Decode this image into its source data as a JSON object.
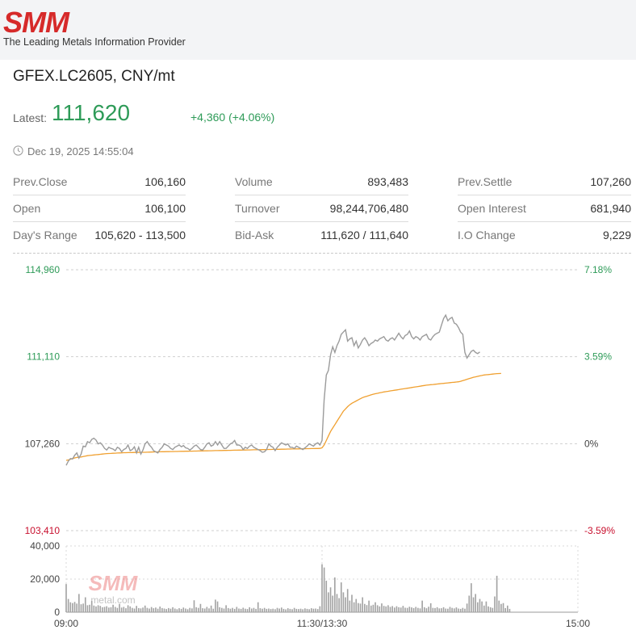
{
  "header": {
    "logo_text": "SMM",
    "tagline": "The Leading Metals Information Provider"
  },
  "instrument": {
    "title": "GFEX.LC2605, CNY/mt",
    "latest_label": "Latest:",
    "latest_value": "111,620",
    "change": "+4,360 (+4.06%)",
    "timestamp": "Dec 19, 2025 14:55:04"
  },
  "stats": [
    [
      {
        "label": "Prev.Close",
        "value": "106,160"
      },
      {
        "label": "Open",
        "value": "106,100"
      },
      {
        "label": "Day's Range",
        "value": "105,620 - 113,500"
      }
    ],
    [
      {
        "label": "Volume",
        "value": "893,483"
      },
      {
        "label": "Turnover",
        "value": "98,244,706,480"
      },
      {
        "label": "Bid-Ask",
        "value": "111,620 / 111,640"
      }
    ],
    [
      {
        "label": "Prev.Settle",
        "value": "107,260"
      },
      {
        "label": "Open Interest",
        "value": "681,940"
      },
      {
        "label": "I.O Change",
        "value": "9,229"
      }
    ]
  ],
  "colors": {
    "up": "#2e9b58",
    "down": "#c8102e",
    "price_line": "#9b9b9b",
    "avg_line": "#f0a030",
    "volume_bar": "#a3a3a3",
    "logo": "#d62a2a"
  },
  "chart_data": {
    "type": "line",
    "price_axis": {
      "min": 103410,
      "max": 114960,
      "ticks": [
        {
          "value": 114960,
          "label": "114,960",
          "pct": "7.18%"
        },
        {
          "value": 111110,
          "label": "111,110",
          "pct": "3.59%"
        },
        {
          "value": 107260,
          "label": "107,260",
          "pct": "0%"
        },
        {
          "value": 103410,
          "label": "103,410",
          "pct": "-3.59%"
        }
      ]
    },
    "time_labels": [
      "09:00",
      "11:30/13:30",
      "15:00"
    ],
    "session_split_index": 120,
    "price_series": [
      106300,
      106480,
      106600,
      106580,
      106750,
      106850,
      106620,
      106800,
      107150,
      107120,
      107350,
      107300,
      107450,
      107500,
      107420,
      107250,
      107300,
      107200,
      107050,
      106980,
      107100,
      107050,
      107020,
      106950,
      107100,
      107050,
      106900,
      107000,
      107050,
      107200,
      106950,
      107000,
      107120,
      106850,
      107100,
      106800,
      106980,
      107250,
      107350,
      107200,
      107100,
      106950,
      106900,
      106850,
      107000,
      107100,
      107250,
      107200,
      107150,
      107050,
      107000,
      107100,
      107150,
      107200,
      107120,
      107180,
      107080,
      107050,
      106980,
      107050,
      107150,
      107200,
      107100,
      107000,
      106980,
      107100,
      107250,
      107300,
      107150,
      107200,
      107350,
      107200,
      107350,
      107200,
      107050,
      107050,
      107150,
      107250,
      107300,
      107400,
      107200,
      107200,
      107150,
      107000,
      107100,
      107050,
      107150,
      107200,
      107100,
      107050,
      107000,
      106950,
      106880,
      106900,
      107000,
      107250,
      107150,
      107100,
      106950,
      107100,
      107200,
      107300,
      107250,
      107200,
      107250,
      107100,
      107100,
      107050,
      107150,
      107100,
      107050,
      107000,
      107080,
      107150,
      107250,
      107200,
      107150,
      107250,
      107300,
      107200,
      107400,
      109200,
      110300,
      110500,
      111200,
      111550,
      111300,
      111600,
      111800,
      112100,
      112200,
      112300,
      111800,
      111900,
      111950,
      111600,
      111800,
      111500,
      111650,
      111850,
      111950,
      111800,
      111600,
      111700,
      111750,
      111850,
      111800,
      111900,
      111950,
      112000,
      111850,
      111800,
      111900,
      111950,
      111850,
      112000,
      112150,
      112000,
      111900,
      112050,
      112100,
      112250,
      112000,
      111900,
      112000,
      111950,
      111850,
      112000,
      112050,
      112100,
      111900,
      111850,
      112000,
      112100,
      112150,
      112200,
      112500,
      112800,
      112950,
      112700,
      112800,
      112850,
      112600,
      112550,
      112400,
      112200,
      112100,
      111300,
      111050,
      111200,
      111350,
      111400,
      111300,
      111250,
      111320
    ],
    "avg_series": [
      106520,
      106540,
      106570,
      106600,
      106630,
      106650,
      106660,
      106670,
      106690,
      106710,
      106730,
      106740,
      106750,
      106760,
      106770,
      106780,
      106790,
      106800,
      106810,
      106820,
      106825,
      106830,
      106835,
      106840,
      106845,
      106850,
      106855,
      106860,
      106862,
      106864,
      106866,
      106868,
      106870,
      106872,
      106874,
      106876,
      106878,
      106880,
      106883,
      106886,
      106889,
      106892,
      106895,
      106898,
      106900,
      106902,
      106904,
      106906,
      106908,
      106910,
      106912,
      106914,
      106916,
      106918,
      106920,
      106922,
      106924,
      106926,
      106928,
      106930,
      106932,
      106934,
      106936,
      106938,
      106940,
      106942,
      106944,
      106946,
      106948,
      106950,
      106952,
      106954,
      106956,
      106958,
      106960,
      106962,
      106964,
      106966,
      106968,
      106970,
      106972,
      106974,
      106976,
      106978,
      106980,
      106982,
      106984,
      106986,
      106988,
      106990,
      106992,
      106994,
      106996,
      106998,
      107000,
      107002,
      107004,
      107006,
      107008,
      107010,
      107012,
      107014,
      107016,
      107018,
      107020,
      107022,
      107024,
      107026,
      107028,
      107030,
      107032,
      107034,
      107036,
      107038,
      107040,
      107042,
      107044,
      107046,
      107048,
      107050,
      107080,
      107200,
      107400,
      107600,
      107800,
      107950,
      108100,
      108250,
      108400,
      108550,
      108700,
      108800,
      108900,
      108980,
      109050,
      109100,
      109150,
      109200,
      109250,
      109300,
      109330,
      109360,
      109390,
      109420,
      109450,
      109470,
      109490,
      109510,
      109530,
      109550,
      109565,
      109580,
      109595,
      109610,
      109625,
      109640,
      109655,
      109670,
      109685,
      109700,
      109715,
      109730,
      109745,
      109760,
      109775,
      109790,
      109805,
      109820,
      109835,
      109850,
      109860,
      109870,
      109880,
      109890,
      109900,
      109910,
      109920,
      109930,
      109940,
      109950,
      109960,
      109970,
      109980,
      109990,
      110000,
      110020,
      110050,
      110080,
      110110,
      110140,
      110170,
      110200,
      110220,
      110240,
      110260,
      110280,
      110300,
      110310,
      110320,
      110330,
      110340,
      110350,
      110360,
      110365,
      110370
    ],
    "volume_axis": {
      "min": 0,
      "max": 40000,
      "ticks": [
        {
          "value": 40000,
          "label": "40,000"
        },
        {
          "value": 20000,
          "label": "20,000"
        },
        {
          "value": 0,
          "label": "0"
        }
      ]
    },
    "volume_series": [
      17000,
      8000,
      6000,
      5500,
      6200,
      5200,
      11000,
      4800,
      5200,
      9000,
      4200,
      4500,
      6800,
      4000,
      3500,
      4200,
      3800,
      3000,
      3200,
      3600,
      2800,
      3000,
      4500,
      3200,
      2600,
      5000,
      2800,
      3200,
      2400,
      4200,
      3500,
      2600,
      2200,
      3800,
      2500,
      2300,
      2800,
      4000,
      2600,
      2200,
      3100,
      2400,
      2800,
      2100,
      3400,
      2500,
      2200,
      1900,
      2500,
      2100,
      3000,
      2200,
      1800,
      2400,
      2000,
      2800,
      2200,
      1800,
      2600,
      2300,
      7200,
      3000,
      2600,
      5000,
      2400,
      2200,
      3200,
      2300,
      4000,
      2100,
      7600,
      6500,
      3000,
      2600,
      2200,
      4200,
      2500,
      2100,
      2600,
      2000,
      3200,
      2200,
      2000,
      2700,
      2100,
      1900,
      3000,
      2200,
      2600,
      2000,
      6000,
      2400,
      2100,
      2600,
      2000,
      2200,
      1900,
      2100,
      1800,
      2600,
      2200,
      2800,
      2000,
      1700,
      2400,
      2000,
      1800,
      2600,
      2000,
      1900,
      2100,
      1800,
      2300,
      2000,
      1800,
      2400,
      2100,
      2200,
      1900,
      3600,
      29000,
      27000,
      19000,
      12000,
      15000,
      10000,
      21000,
      11000,
      8500,
      18000,
      12000,
      9000,
      14000,
      7000,
      10500,
      6000,
      8000,
      5500,
      5200,
      9000,
      5000,
      4300,
      7000,
      4000,
      4500,
      6000,
      4200,
      3500,
      5300,
      3800,
      3500,
      4200,
      3200,
      3700,
      2800,
      3600,
      3000,
      2800,
      3800,
      2700,
      2600,
      3300,
      2900,
      2500,
      3200,
      2600,
      2300,
      7000,
      3000,
      2400,
      3300,
      5400,
      2600,
      2500,
      3000,
      2300,
      2400,
      3000,
      2200,
      2100,
      3200,
      2600,
      2300,
      2900,
      2200,
      2000,
      2600,
      2100,
      5200,
      10000,
      17500,
      9000,
      11000,
      6000,
      8000,
      6500,
      4000,
      6500,
      3500,
      3000,
      2600,
      9500,
      22000,
      7000,
      5000,
      5500,
      2500,
      4000,
      2000
    ]
  }
}
